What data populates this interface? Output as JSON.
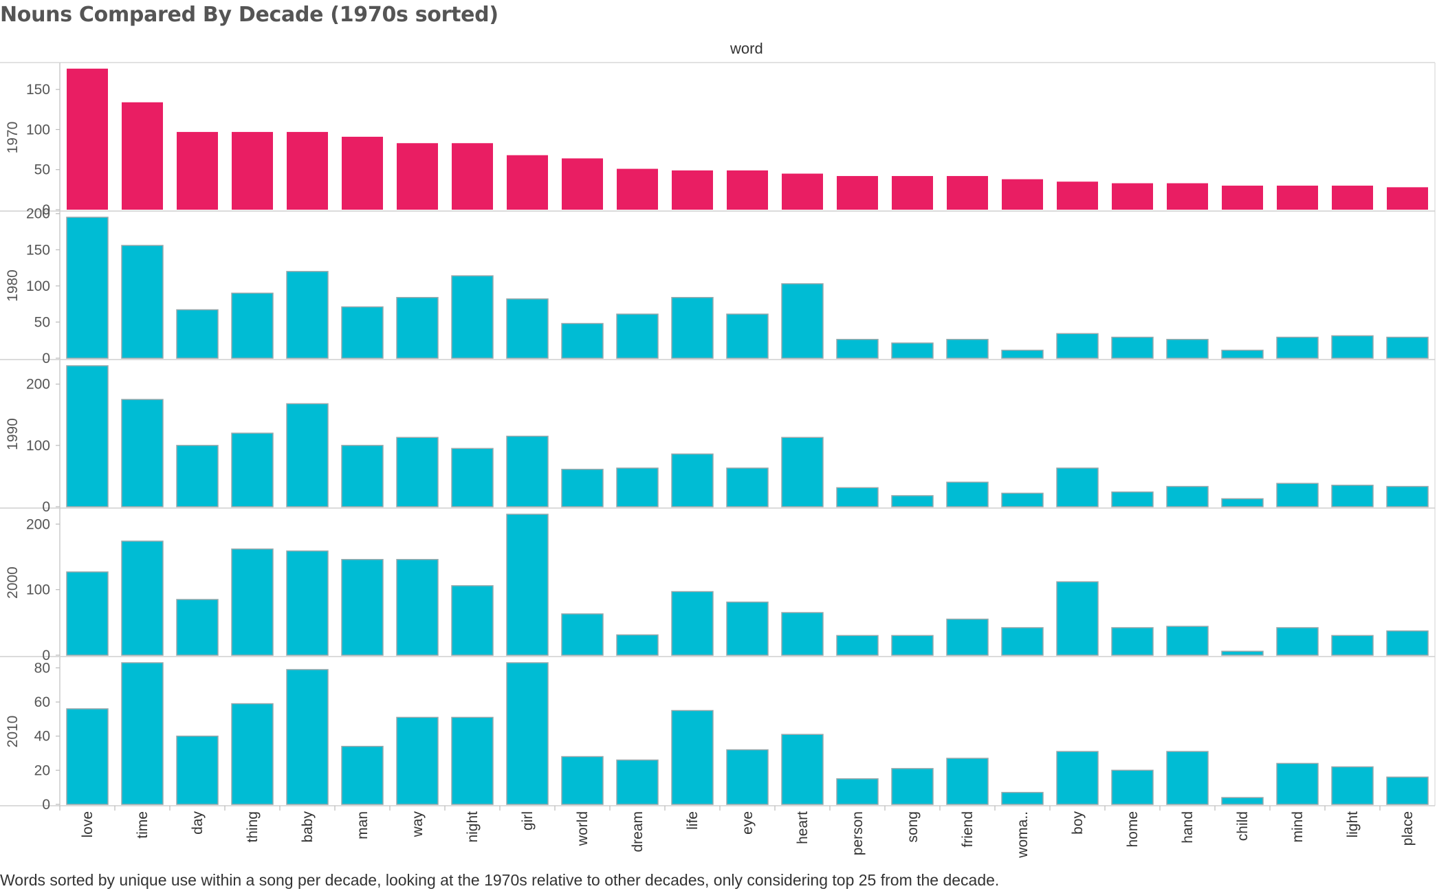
{
  "chart_data": {
    "type": "bar",
    "title": "Nouns Compared By Decade (1970s sorted)",
    "column_header": "word",
    "caption": "Words sorted by unique use within a song per decade, looking at the 1970s relative to other decades, only considering top 25 from the decade.",
    "categories": [
      "love",
      "time",
      "day",
      "thing",
      "baby",
      "man",
      "way",
      "night",
      "girl",
      "world",
      "dream",
      "life",
      "eye",
      "heart",
      "person",
      "song",
      "friend",
      "woma..",
      "boy",
      "home",
      "hand",
      "child",
      "mind",
      "light",
      "place"
    ],
    "highlight_color": "#e91e63",
    "bar_color": "#00bcd4",
    "series": [
      {
        "name": "1970",
        "ylim": [
          0,
          175
        ],
        "ticks": [
          0,
          50,
          100,
          150
        ],
        "highlight": true,
        "values": [
          176,
          134,
          97,
          97,
          97,
          91,
          83,
          83,
          68,
          64,
          51,
          49,
          49,
          45,
          42,
          42,
          42,
          38,
          35,
          33,
          33,
          30,
          30,
          30,
          28
        ]
      },
      {
        "name": "1980",
        "ylim": [
          0,
          195
        ],
        "ticks": [
          0,
          50,
          100,
          150,
          200
        ],
        "highlight": false,
        "values": [
          195,
          156,
          67,
          90,
          120,
          71,
          84,
          114,
          82,
          48,
          61,
          84,
          61,
          103,
          26,
          21,
          26,
          11,
          34,
          29,
          26,
          11,
          29,
          31,
          29
        ]
      },
      {
        "name": "1990",
        "ylim": [
          0,
          230
        ],
        "ticks": [
          0,
          100,
          200
        ],
        "highlight": false,
        "values": [
          230,
          175,
          100,
          120,
          168,
          100,
          113,
          95,
          115,
          61,
          63,
          86,
          63,
          113,
          31,
          18,
          40,
          22,
          63,
          24,
          33,
          13,
          38,
          35,
          33
        ]
      },
      {
        "name": "2000",
        "ylim": [
          0,
          215
        ],
        "ticks": [
          0,
          100,
          200
        ],
        "highlight": false,
        "values": [
          127,
          174,
          85,
          162,
          159,
          146,
          146,
          106,
          215,
          63,
          31,
          97,
          81,
          65,
          30,
          30,
          55,
          42,
          112,
          42,
          44,
          6,
          42,
          30,
          37
        ]
      },
      {
        "name": "2010",
        "ylim": [
          0,
          83
        ],
        "ticks": [
          0,
          20,
          40,
          60,
          80
        ],
        "highlight": false,
        "values": [
          56,
          83,
          40,
          59,
          79,
          34,
          51,
          51,
          83,
          28,
          26,
          55,
          32,
          41,
          15,
          21,
          27,
          7,
          31,
          20,
          31,
          4,
          24,
          22,
          16
        ]
      }
    ]
  }
}
